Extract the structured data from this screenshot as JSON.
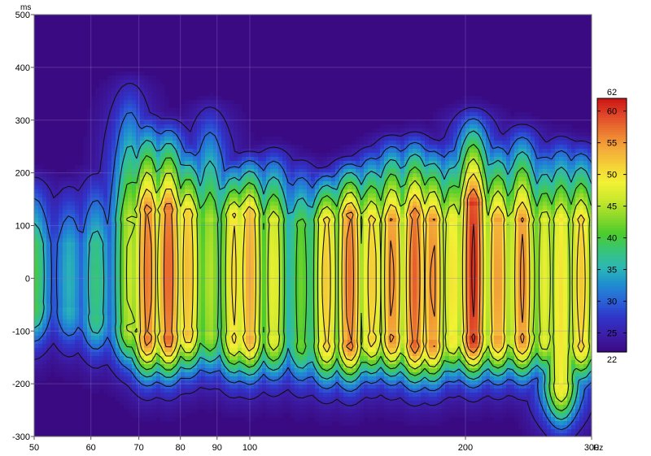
{
  "chart_data": {
    "type": "heatmap",
    "subtype": "waterfall spectrogram with contour lines",
    "x_scale": "log",
    "xlim": [
      50,
      300
    ],
    "ylim": [
      -300,
      500
    ],
    "x_unit": "Hz",
    "y_unit": "ms",
    "x_ticks": [
      {
        "value": 50,
        "label": "50"
      },
      {
        "value": 60,
        "label": "60"
      },
      {
        "value": 70,
        "label": "70"
      },
      {
        "value": 80,
        "label": "80"
      },
      {
        "value": 90,
        "label": "90"
      },
      {
        "value": 100,
        "label": "100"
      },
      {
        "value": 200,
        "label": "200"
      },
      {
        "value": 300,
        "label": "300"
      }
    ],
    "y_ticks": [
      {
        "value": 500,
        "label": "500"
      },
      {
        "value": 400,
        "label": "400"
      },
      {
        "value": 300,
        "label": "300"
      },
      {
        "value": 200,
        "label": "200"
      },
      {
        "value": 100,
        "label": "100"
      },
      {
        "value": 0,
        "label": "0"
      },
      {
        "value": -100,
        "label": "-100"
      },
      {
        "value": -200,
        "label": "-200"
      },
      {
        "value": -300,
        "label": "-300"
      }
    ],
    "colorbar": {
      "min": 22,
      "max": 62,
      "min_label": "22",
      "max_label": "62",
      "ticks": [
        {
          "value": 60,
          "label": "60"
        },
        {
          "value": 55,
          "label": "55"
        },
        {
          "value": 50,
          "label": "50"
        },
        {
          "value": 45,
          "label": "45"
        },
        {
          "value": 40,
          "label": "40"
        },
        {
          "value": 35,
          "label": "35"
        },
        {
          "value": 30,
          "label": "30"
        },
        {
          "value": 25,
          "label": "25"
        }
      ]
    },
    "background_color": "#3a0a82",
    "colormap": [
      "#3a0a82",
      "#3c1ea8",
      "#2f34c8",
      "#2a62d8",
      "#1f8ed0",
      "#2cb8b4",
      "#38c478",
      "#4ccc2e",
      "#8ed82a",
      "#c9e82c",
      "#f2f234",
      "#f4d236",
      "#f4aa3a",
      "#ec7a30",
      "#e0462a",
      "#cc1414"
    ],
    "contour_levels": [
      25,
      30,
      35,
      40,
      45,
      50,
      55,
      60
    ],
    "peaks": [
      {
        "freq": 50,
        "level": 40,
        "t_low": -50,
        "t_high": 60,
        "ridge_top": 200
      },
      {
        "freq": 56,
        "level": 35,
        "t_low": -55,
        "t_high": 60,
        "ridge_top": 190
      },
      {
        "freq": 61,
        "level": 38,
        "t_low": -70,
        "t_high": 60,
        "ridge_top": 210
      },
      {
        "freq": 68,
        "level": 46,
        "t_low": -90,
        "t_high": 110,
        "ridge_top": 375
      },
      {
        "freq": 72,
        "level": 57,
        "t_low": -110,
        "t_high": 130,
        "ridge_top": 310
      },
      {
        "freq": 77,
        "level": 58,
        "t_low": -110,
        "t_high": 130,
        "ridge_top": 300
      },
      {
        "freq": 82,
        "level": 53,
        "t_low": -100,
        "t_high": 120,
        "ridge_top": 260
      },
      {
        "freq": 88,
        "level": 45,
        "t_low": -100,
        "t_high": 110,
        "ridge_top": 330
      },
      {
        "freq": 95,
        "level": 51,
        "t_low": -110,
        "t_high": 120,
        "ridge_top": 230
      },
      {
        "freq": 100,
        "level": 54,
        "t_low": -110,
        "t_high": 120,
        "ridge_top": 240
      },
      {
        "freq": 108,
        "level": 48,
        "t_low": -110,
        "t_high": 110,
        "ridge_top": 250
      },
      {
        "freq": 118,
        "level": 42,
        "t_low": -120,
        "t_high": 100,
        "ridge_top": 230
      },
      {
        "freq": 128,
        "level": 52,
        "t_low": -120,
        "t_high": 110,
        "ridge_top": 210
      },
      {
        "freq": 138,
        "level": 57,
        "t_low": -120,
        "t_high": 120,
        "ridge_top": 230
      },
      {
        "freq": 148,
        "level": 52,
        "t_low": -110,
        "t_high": 110,
        "ridge_top": 250
      },
      {
        "freq": 158,
        "level": 56,
        "t_low": -110,
        "t_high": 110,
        "ridge_top": 270
      },
      {
        "freq": 170,
        "level": 58,
        "t_low": -120,
        "t_high": 120,
        "ridge_top": 275
      },
      {
        "freq": 180,
        "level": 56,
        "t_low": -120,
        "t_high": 110,
        "ridge_top": 260
      },
      {
        "freq": 192,
        "level": 50,
        "t_low": -110,
        "t_high": 110,
        "ridge_top": 270
      },
      {
        "freq": 205,
        "level": 61,
        "t_low": -110,
        "t_high": 140,
        "ridge_top": 320
      },
      {
        "freq": 222,
        "level": 55,
        "t_low": -110,
        "t_high": 110,
        "ridge_top": 270
      },
      {
        "freq": 240,
        "level": 56,
        "t_low": -110,
        "t_high": 110,
        "ridge_top": 290
      },
      {
        "freq": 258,
        "level": 48,
        "t_low": -110,
        "t_high": 110,
        "ridge_top": 260
      },
      {
        "freq": 272,
        "level": 50,
        "t_low": -200,
        "t_high": 110,
        "ridge_top": 270
      },
      {
        "freq": 290,
        "level": 52,
        "t_low": -120,
        "t_high": 110,
        "ridge_top": 260
      },
      {
        "freq": 300,
        "level": 44,
        "t_low": -120,
        "t_high": 100,
        "ridge_top": 240
      }
    ]
  }
}
